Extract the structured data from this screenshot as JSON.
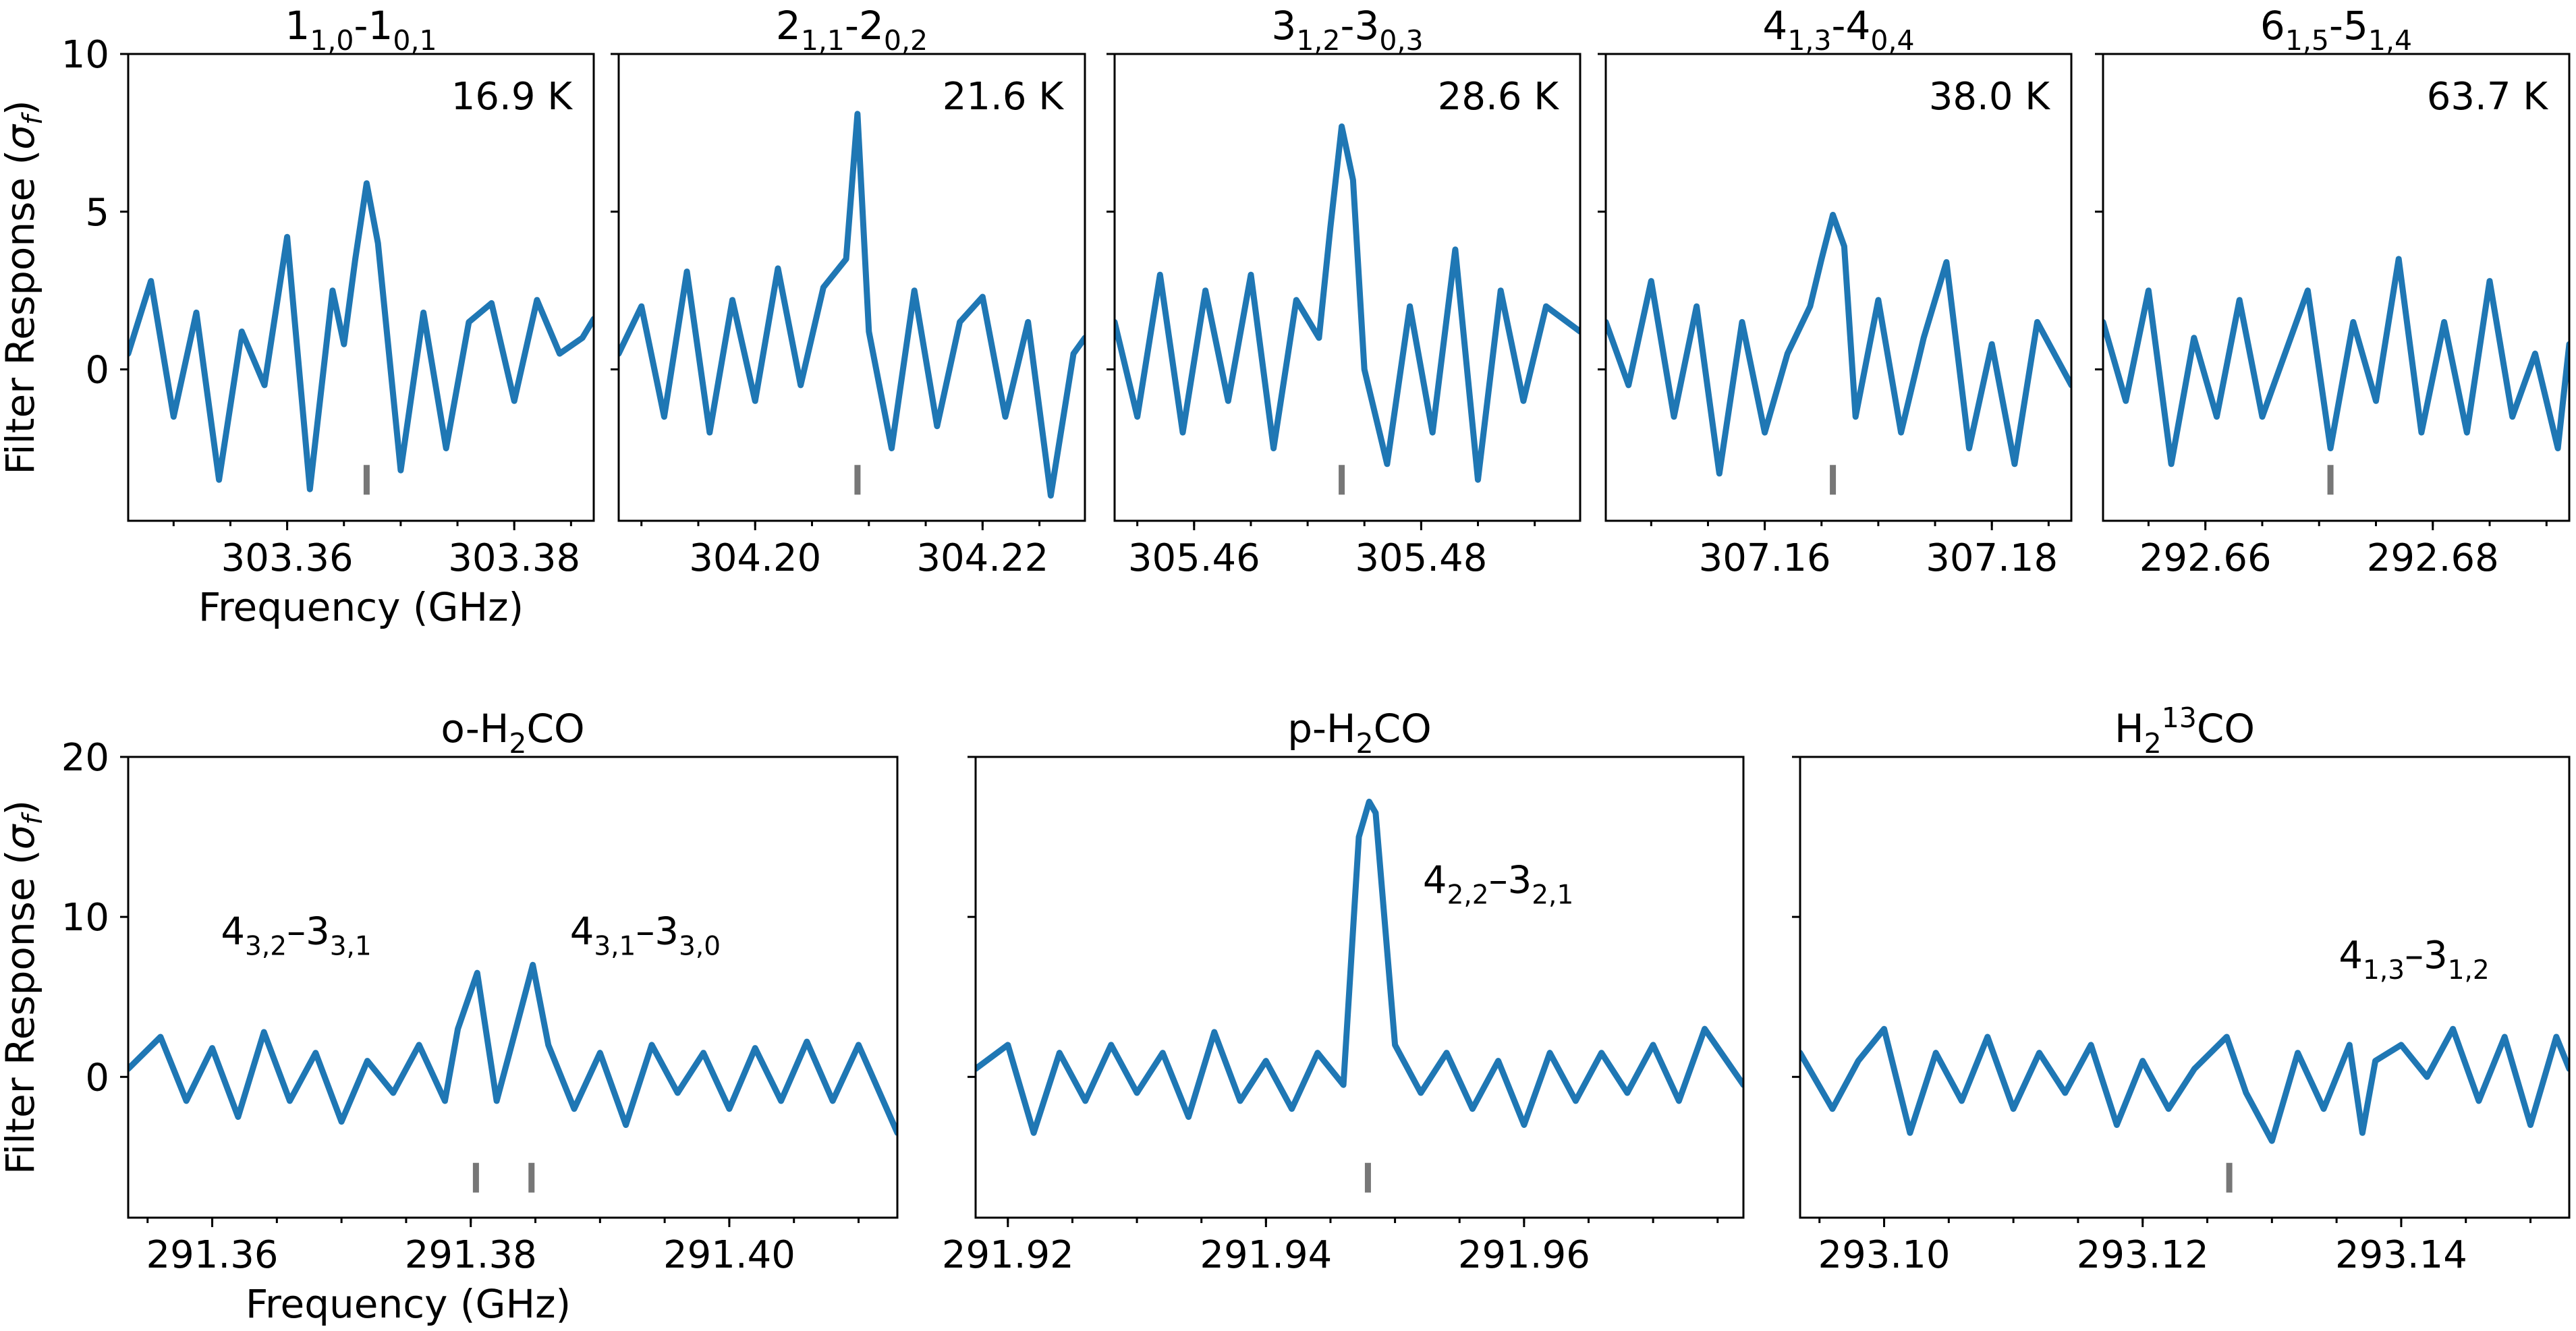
{
  "chart_data": [
    {
      "type": "line",
      "title": "1_{1,0}-1_{0,1}",
      "annotation": "16.9 K",
      "xlabel": "Frequency (GHz)",
      "ylabel": "Filter Response (σ_f)",
      "xlim": [
        303.346,
        303.387
      ],
      "ylim": [
        -4.8,
        10
      ],
      "xticks": [
        "303.36",
        "303.38"
      ],
      "xtick_values": [
        303.36,
        303.38
      ],
      "yticks": [
        "0",
        "5",
        "10"
      ],
      "ytick_values": [
        0,
        5,
        10
      ],
      "marker_x": [
        303.367
      ],
      "marker_y": -3.5,
      "series": [
        {
          "color": "#1f77b4",
          "x": [
            303.346,
            303.348,
            303.35,
            303.352,
            303.354,
            303.356,
            303.358,
            303.36,
            303.362,
            303.364,
            303.365,
            303.366,
            303.367,
            303.368,
            303.37,
            303.372,
            303.374,
            303.376,
            303.378,
            303.38,
            303.382,
            303.384,
            303.386,
            303.387
          ],
          "values": [
            0.5,
            2.8,
            -1.5,
            1.8,
            -3.5,
            1.2,
            -0.5,
            4.2,
            -3.8,
            2.5,
            0.8,
            3.5,
            5.9,
            4.0,
            -3.2,
            1.8,
            -2.5,
            1.5,
            2.1,
            -1.0,
            2.2,
            0.5,
            1.0,
            1.6
          ]
        }
      ]
    },
    {
      "type": "line",
      "title": "2_{1,1}-2_{0,2}",
      "annotation": "21.6 K",
      "xlim": [
        304.188,
        304.229
      ],
      "ylim": [
        -4.8,
        10
      ],
      "xticks": [
        "304.20",
        "304.22"
      ],
      "xtick_values": [
        304.2,
        304.22
      ],
      "yticks": [],
      "ytick_values": [
        0,
        5,
        10
      ],
      "marker_x": [
        304.209
      ],
      "marker_y": -3.5,
      "series": [
        {
          "color": "#1f77b4",
          "x": [
            304.188,
            304.19,
            304.192,
            304.194,
            304.196,
            304.198,
            304.2,
            304.202,
            304.204,
            304.206,
            304.208,
            304.209,
            304.21,
            304.212,
            304.214,
            304.216,
            304.218,
            304.22,
            304.222,
            304.224,
            304.226,
            304.228,
            304.229
          ],
          "values": [
            0.5,
            2.0,
            -1.5,
            3.1,
            -2.0,
            2.2,
            -1.0,
            3.2,
            -0.5,
            2.6,
            3.5,
            8.1,
            1.2,
            -2.5,
            2.5,
            -1.8,
            1.5,
            2.3,
            -1.5,
            1.5,
            -4.0,
            0.5,
            1.0
          ]
        }
      ]
    },
    {
      "type": "line",
      "title": "3_{1,2}-3_{0,3}",
      "annotation": "28.6 K",
      "xlim": [
        305.453,
        305.494
      ],
      "ylim": [
        -4.8,
        10
      ],
      "xticks": [
        "305.46",
        "305.48"
      ],
      "xtick_values": [
        305.46,
        305.48
      ],
      "yticks": [],
      "ytick_values": [
        0,
        5,
        10
      ],
      "marker_x": [
        305.473
      ],
      "marker_y": -3.5,
      "series": [
        {
          "color": "#1f77b4",
          "x": [
            305.453,
            305.455,
            305.457,
            305.459,
            305.461,
            305.463,
            305.465,
            305.467,
            305.469,
            305.471,
            305.472,
            305.473,
            305.474,
            305.475,
            305.477,
            305.479,
            305.481,
            305.483,
            305.485,
            305.487,
            305.489,
            305.491,
            305.494
          ],
          "values": [
            1.5,
            -1.5,
            3.0,
            -2.0,
            2.5,
            -1.0,
            3.0,
            -2.5,
            2.2,
            1.0,
            4.5,
            7.7,
            6.0,
            0.0,
            -3.0,
            2.0,
            -2.0,
            3.8,
            -3.5,
            2.5,
            -1.0,
            2.0,
            1.2
          ]
        }
      ]
    },
    {
      "type": "line",
      "title": "4_{1,3}-4_{0,4}",
      "annotation": "38.0 K",
      "xlim": [
        307.146,
        307.187
      ],
      "ylim": [
        -4.8,
        10
      ],
      "xticks": [
        "307.16",
        "307.18"
      ],
      "xtick_values": [
        307.16,
        307.18
      ],
      "yticks": [],
      "ytick_values": [
        0,
        5,
        10
      ],
      "marker_x": [
        307.166
      ],
      "marker_y": -3.5,
      "series": [
        {
          "color": "#1f77b4",
          "x": [
            307.146,
            307.148,
            307.15,
            307.152,
            307.154,
            307.156,
            307.158,
            307.16,
            307.162,
            307.164,
            307.165,
            307.166,
            307.167,
            307.168,
            307.17,
            307.172,
            307.174,
            307.176,
            307.178,
            307.18,
            307.182,
            307.184,
            307.187
          ],
          "values": [
            1.5,
            -0.5,
            2.8,
            -1.5,
            2.0,
            -3.3,
            1.5,
            -2.0,
            0.5,
            2.0,
            3.5,
            4.9,
            3.9,
            -1.5,
            2.2,
            -2.0,
            1.0,
            3.4,
            -2.5,
            0.8,
            -3.0,
            1.5,
            -0.5
          ]
        }
      ]
    },
    {
      "type": "line",
      "title": "6_{1,5}-5_{1,4}",
      "annotation": "63.7 K",
      "xlim": [
        292.651,
        292.692
      ],
      "ylim": [
        -4.8,
        10
      ],
      "xticks": [
        "292.66",
        "292.68"
      ],
      "xtick_values": [
        292.66,
        292.68
      ],
      "yticks": [],
      "ytick_values": [
        0,
        5,
        10
      ],
      "marker_x": [
        292.671
      ],
      "marker_y": -3.5,
      "series": [
        {
          "color": "#1f77b4",
          "x": [
            292.651,
            292.653,
            292.655,
            292.657,
            292.659,
            292.661,
            292.663,
            292.665,
            292.667,
            292.669,
            292.671,
            292.673,
            292.675,
            292.677,
            292.679,
            292.681,
            292.683,
            292.685,
            292.687,
            292.689,
            292.691,
            292.692
          ],
          "values": [
            1.5,
            -1.0,
            2.5,
            -3.0,
            1.0,
            -1.5,
            2.2,
            -1.5,
            0.5,
            2.5,
            -2.5,
            1.5,
            -1.0,
            3.5,
            -2.0,
            1.5,
            -2.0,
            2.8,
            -1.5,
            0.5,
            -2.5,
            0.8
          ]
        }
      ]
    },
    {
      "type": "line",
      "title": "o-H_2CO",
      "xlabel": "Frequency (GHz)",
      "ylabel": "Filter Response (σ_f)",
      "xlim": [
        291.3535,
        291.413
      ],
      "ylim": [
        -8.8,
        20
      ],
      "xticks": [
        "291.36",
        "291.38",
        "291.40"
      ],
      "xtick_values": [
        291.36,
        291.38,
        291.4
      ],
      "yticks": [
        "0",
        "10",
        "20"
      ],
      "ytick_values": [
        0,
        10,
        20
      ],
      "marker_x": [
        291.3804,
        291.3847
      ],
      "marker_y": -6.3,
      "labels": [
        {
          "text": "4_{3,2}–3_{3,1}",
          "x": 291.3665,
          "y": 8.3
        },
        {
          "text": "4_{3,1}–3_{3,0}",
          "x": 291.3935,
          "y": 8.3
        }
      ],
      "series": [
        {
          "color": "#1f77b4",
          "x": [
            291.3535,
            291.356,
            291.358,
            291.36,
            291.362,
            291.364,
            291.366,
            291.368,
            291.37,
            291.372,
            291.374,
            291.376,
            291.378,
            291.379,
            291.3805,
            291.382,
            291.383,
            291.3848,
            291.386,
            291.388,
            291.39,
            291.392,
            291.394,
            291.396,
            291.398,
            291.4,
            291.402,
            291.404,
            291.406,
            291.408,
            291.41,
            291.413
          ],
          "values": [
            0.5,
            2.5,
            -1.5,
            1.8,
            -2.5,
            2.8,
            -1.5,
            1.5,
            -2.8,
            1.0,
            -1.0,
            2.0,
            -1.5,
            3.0,
            6.5,
            -1.5,
            1.5,
            7.0,
            2.0,
            -2.0,
            1.5,
            -3.0,
            2.0,
            -1.0,
            1.5,
            -2.0,
            1.8,
            -1.5,
            2.2,
            -1.5,
            2.0,
            -3.5
          ]
        }
      ]
    },
    {
      "type": "line",
      "title": "p-H_2CO",
      "xlim": [
        291.9175,
        291.977
      ],
      "ylim": [
        -8.8,
        20
      ],
      "xticks": [
        "291.92",
        "291.94",
        "291.96"
      ],
      "xtick_values": [
        291.92,
        291.94,
        291.96
      ],
      "yticks": [],
      "ytick_values": [
        0,
        10,
        20
      ],
      "marker_x": [
        291.9479
      ],
      "marker_y": -6.3,
      "labels": [
        {
          "text": "4_{2,2}–3_{2,1}",
          "x": 291.958,
          "y": 11.5
        }
      ],
      "series": [
        {
          "color": "#1f77b4",
          "x": [
            291.9175,
            291.92,
            291.922,
            291.924,
            291.926,
            291.928,
            291.93,
            291.932,
            291.934,
            291.936,
            291.938,
            291.94,
            291.942,
            291.944,
            291.946,
            291.9472,
            291.948,
            291.9485,
            291.95,
            291.952,
            291.954,
            291.956,
            291.958,
            291.96,
            291.962,
            291.964,
            291.966,
            291.968,
            291.97,
            291.972,
            291.974,
            291.977
          ],
          "values": [
            0.5,
            2.0,
            -3.5,
            1.5,
            -1.5,
            2.0,
            -1.0,
            1.5,
            -2.5,
            2.8,
            -1.5,
            1.0,
            -2.0,
            1.5,
            -0.5,
            15.0,
            17.2,
            16.5,
            2.0,
            -1.0,
            1.5,
            -2.0,
            1.0,
            -3.0,
            1.5,
            -1.5,
            1.5,
            -1.0,
            2.0,
            -1.5,
            3.0,
            -0.5
          ]
        }
      ]
    },
    {
      "type": "line",
      "title": "H_2^{13}CO",
      "xlim": [
        293.0935,
        293.153
      ],
      "ylim": [
        -8.8,
        20
      ],
      "xticks": [
        "293.10",
        "293.12",
        "293.14"
      ],
      "xtick_values": [
        293.1,
        293.12,
        293.14
      ],
      "yticks": [],
      "ytick_values": [
        0,
        10,
        20
      ],
      "marker_x": [
        293.1267
      ],
      "marker_y": -6.3,
      "labels": [
        {
          "text": "4_{1,3}–3_{1,2}",
          "x": 293.141,
          "y": 6.8
        }
      ],
      "series": [
        {
          "color": "#1f77b4",
          "x": [
            293.0935,
            293.096,
            293.098,
            293.1,
            293.102,
            293.104,
            293.106,
            293.108,
            293.11,
            293.112,
            293.114,
            293.116,
            293.118,
            293.12,
            293.122,
            293.124,
            293.1265,
            293.128,
            293.13,
            293.132,
            293.134,
            293.136,
            293.137,
            293.138,
            293.14,
            293.142,
            293.144,
            293.146,
            293.148,
            293.15,
            293.152,
            293.153
          ],
          "values": [
            1.5,
            -2.0,
            1.0,
            3.0,
            -3.5,
            1.5,
            -1.5,
            2.5,
            -2.0,
            1.5,
            -1.0,
            2.0,
            -3.0,
            1.0,
            -2.0,
            0.5,
            2.5,
            -1.0,
            -4.0,
            1.5,
            -2.0,
            2.0,
            -3.5,
            1.0,
            2.0,
            0.0,
            3.0,
            -1.5,
            2.5,
            -3.0,
            2.5,
            0.5
          ]
        }
      ]
    }
  ]
}
